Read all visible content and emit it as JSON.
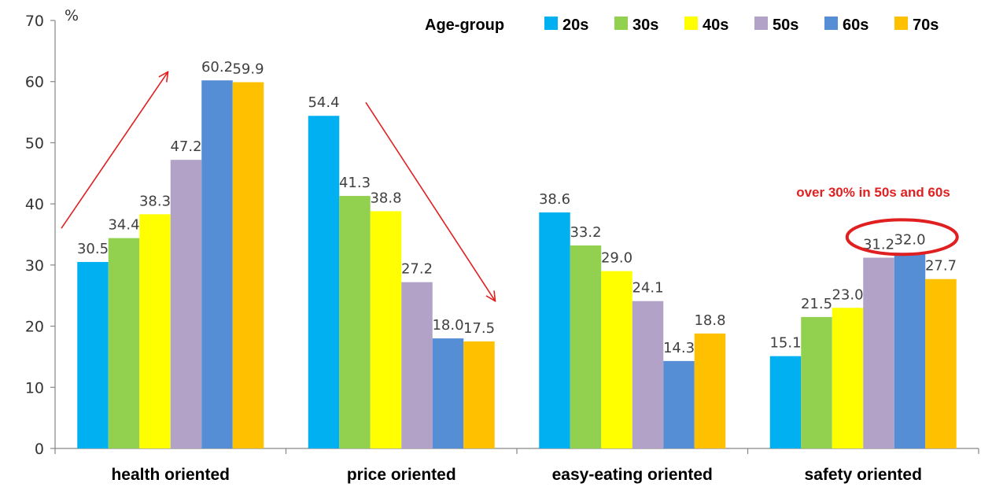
{
  "chart_data": {
    "type": "bar",
    "ylabel": "%",
    "ylim": [
      0,
      70
    ],
    "yticks": [
      0,
      10,
      20,
      30,
      40,
      50,
      60,
      70
    ],
    "grid": false,
    "legend": {
      "title": "Age-group",
      "position": "top-right"
    },
    "categories": [
      "health oriented",
      "price oriented",
      "easy-eating oriented",
      "safety oriented"
    ],
    "series": [
      {
        "name": "20s",
        "color": "#00B0F0",
        "values": [
          30.5,
          54.4,
          38.6,
          15.1
        ]
      },
      {
        "name": "30s",
        "color": "#92D050",
        "values": [
          34.4,
          41.3,
          33.2,
          21.5
        ]
      },
      {
        "name": "40s",
        "color": "#FFFF00",
        "values": [
          38.3,
          38.8,
          29.0,
          23.0
        ]
      },
      {
        "name": "50s",
        "color": "#B3A2C7",
        "values": [
          47.2,
          27.2,
          24.1,
          31.2
        ]
      },
      {
        "name": "60s",
        "color": "#558ED5",
        "values": [
          60.2,
          18.0,
          14.3,
          32.0
        ]
      },
      {
        "name": "70s",
        "color": "#FFC000",
        "values": [
          59.9,
          17.5,
          18.8,
          27.7
        ]
      }
    ],
    "annotations": {
      "highlight_text": "over 30% in 50s and 60s",
      "highlight_color": "#E02020",
      "arrow_color": "#E02020"
    }
  }
}
